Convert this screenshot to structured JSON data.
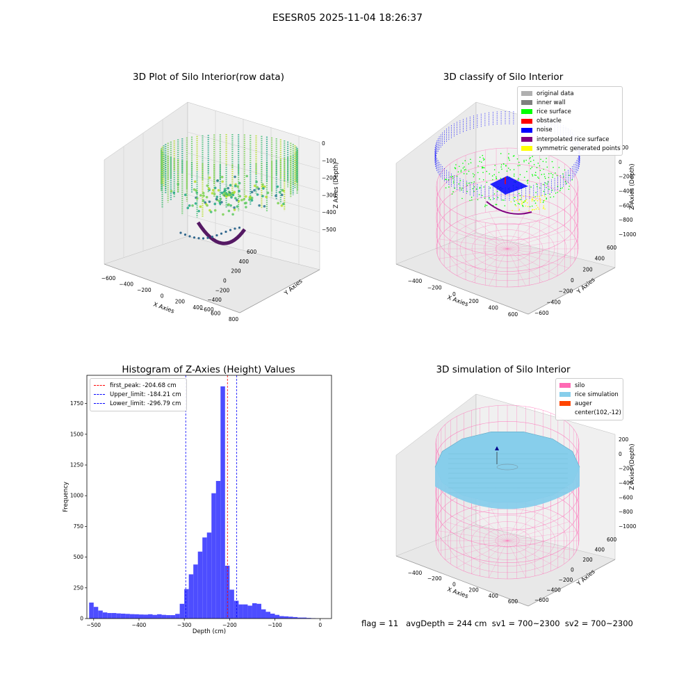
{
  "figure": {
    "suptitle": "ESESR05 2025-11-04 18:26:37",
    "footer": "flag = 11   avgDepth = 244 cm  sv1 = 700~2300  sv2 = 700~2300"
  },
  "colors": {
    "hist_bar": "#4d4dff",
    "first_peak_line": "#ff0000",
    "limit_lines": "#0000ff",
    "silo_wire": "#ff69b4",
    "rice_surface_sim": "#87ceeb",
    "pane": "#f2f2f2"
  },
  "panels": {
    "raw": {
      "title": "3D Plot of Silo Interior(row data)",
      "xlabel": "X Axies",
      "ylabel": "Y Axies",
      "zlabel": "Z Axies (Depth)",
      "xticks": [
        "−600",
        "−400",
        "−200",
        "0",
        "200",
        "400",
        "600",
        "800"
      ],
      "yticks": [
        "600",
        "400",
        "200",
        "0",
        "−200",
        "−400",
        "−600"
      ],
      "zticks": [
        "0",
        "−100",
        "−200",
        "−300",
        "−400",
        "−500"
      ]
    },
    "classify": {
      "title": "3D classify of Silo Interior",
      "xlabel": "X Axies",
      "ylabel": "Y Axies",
      "zlabel": "Z Axies (Depth)",
      "xticks": [
        "−400",
        "−200",
        "0",
        "200",
        "400",
        "600"
      ],
      "yticks": [
        "600",
        "400",
        "200",
        "0",
        "−200",
        "−400",
        "−600"
      ],
      "zticks": [
        "200",
        "0",
        "−200",
        "−400",
        "−600",
        "−800",
        "−1000"
      ],
      "legend": [
        {
          "label": "original data",
          "color": "#b0b0b0"
        },
        {
          "label": "inner wall",
          "color": "#808080"
        },
        {
          "label": "rice surface",
          "color": "#00ff00"
        },
        {
          "label": "obstacle",
          "color": "#ff0000"
        },
        {
          "label": "noise",
          "color": "#0000ff"
        },
        {
          "label": "interpolated rice surface",
          "color": "#800080"
        },
        {
          "label": "symmetric generated points",
          "color": "#ffff00"
        }
      ]
    },
    "sim": {
      "title": "3D simulation of Silo Interior",
      "xlabel": "X Axies",
      "ylabel": "Y Axies",
      "zlabel": "Z Axies (Depth)",
      "xticks": [
        "−400",
        "−200",
        "0",
        "200",
        "400",
        "600"
      ],
      "yticks": [
        "600",
        "400",
        "200",
        "0",
        "−200",
        "−400",
        "−600"
      ],
      "zticks": [
        "200",
        "0",
        "−200",
        "−400",
        "−600",
        "−800",
        "−1000"
      ],
      "legend": [
        {
          "label": "silo",
          "color": "#ff69b4"
        },
        {
          "label": "rice simulation",
          "color": "#87ceeb"
        },
        {
          "label": "auger",
          "color": "#ff4500"
        },
        {
          "label": "center(102,-12)",
          "color": ""
        }
      ]
    }
  },
  "chart_data": {
    "type": "bar",
    "title": "Histogram of Z-Axies (Height) Values",
    "xlabel": "Depth (cm)",
    "ylabel": "Frequency",
    "xlim": [
      -515,
      25
    ],
    "ylim": [
      0,
      1980
    ],
    "xticks": [
      -500,
      -400,
      -300,
      -200,
      -100,
      0
    ],
    "yticks": [
      0,
      250,
      500,
      750,
      1000,
      1250,
      1500,
      1750
    ],
    "bin_width": 10,
    "bin_starts": [
      -510,
      -500,
      -490,
      -480,
      -470,
      -460,
      -450,
      -440,
      -430,
      -420,
      -410,
      -400,
      -390,
      -380,
      -370,
      -360,
      -350,
      -340,
      -330,
      -320,
      -310,
      -300,
      -290,
      -280,
      -270,
      -260,
      -250,
      -240,
      -230,
      -220,
      -210,
      -200,
      -190,
      -180,
      -170,
      -160,
      -150,
      -140,
      -130,
      -120,
      -110,
      -100,
      -90,
      -80,
      -70,
      -60,
      -50,
      -40,
      -30,
      -20
    ],
    "values": [
      130,
      95,
      65,
      50,
      45,
      45,
      42,
      40,
      38,
      36,
      35,
      33,
      32,
      35,
      30,
      35,
      30,
      28,
      28,
      38,
      120,
      240,
      360,
      440,
      545,
      660,
      700,
      1020,
      1120,
      1890,
      430,
      235,
      145,
      115,
      115,
      105,
      125,
      120,
      75,
      55,
      40,
      30,
      20,
      18,
      15,
      12,
      8,
      8,
      5,
      3
    ],
    "lines": [
      {
        "label": "first_peak: -204.68 cm",
        "x": -204.68,
        "color": "#ff0000"
      },
      {
        "label": "Upper_limit: -184.21 cm",
        "x": -184.21,
        "color": "#0000ff"
      },
      {
        "label": "Lower_limit: -296.79 cm",
        "x": -296.79,
        "color": "#0000ff"
      }
    ]
  }
}
